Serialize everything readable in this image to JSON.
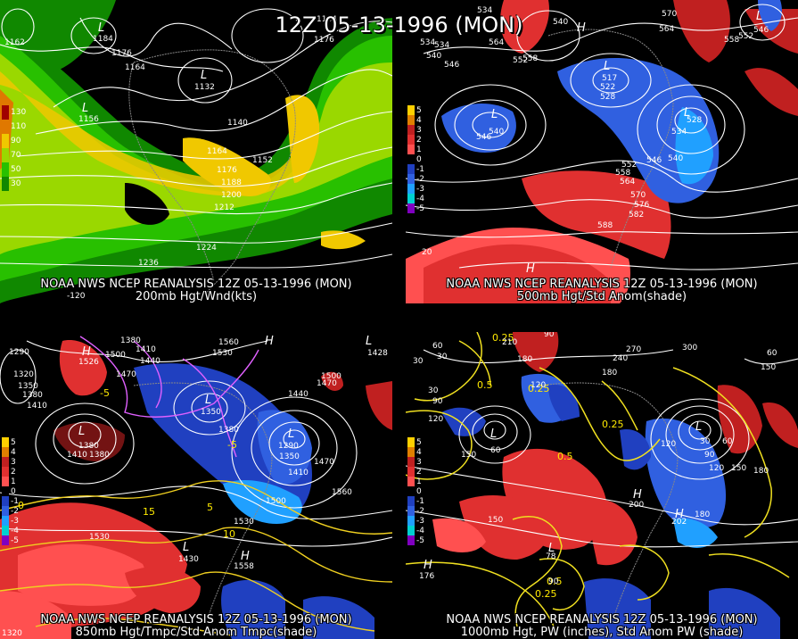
{
  "title": "12Z 05-13-1996 (MON)",
  "panels": [
    {
      "id": "p1",
      "source": "NOAA NWS NCEP REANALYSIS 12Z 05-13-1996 (MON)",
      "field": "200mb Hgt/Wnd(kts)",
      "legend": [
        "130",
        "110",
        "90",
        "70",
        "50",
        "30"
      ],
      "legend_colors": [
        "#a00000",
        "#e07800",
        "#f0c800",
        "#9ad800",
        "#28c000",
        "#108800"
      ],
      "contour_labels": [
        "1164",
        "1176",
        "1164",
        "1184",
        "1132",
        "1156",
        "1140",
        "1152",
        "1164",
        "1176",
        "1188",
        "1200",
        "1212",
        "1224",
        "1236",
        "1176",
        "1162"
      ],
      "lows": [
        "L",
        "L",
        "L"
      ],
      "extra_labels": [
        "-120"
      ]
    },
    {
      "id": "p2",
      "source": "NOAA NWS NCEP REANALYSIS 12Z 05-13-1996 (MON)",
      "field": "500mb Hgt/Std Anom(shade)",
      "legend": [
        "5",
        "4",
        "3",
        "2",
        "1",
        "0",
        "-1",
        "-2",
        "-3",
        "-4",
        "-5"
      ],
      "legend_colors": [
        "#ffd000",
        "#e08000",
        "#c02020",
        "#e03030",
        "#ff5050",
        "#000000",
        "#2040c0",
        "#3060e0",
        "#20a0ff",
        "#00d0d0",
        "#8000c0"
      ],
      "contour_labels": [
        "534",
        "540",
        "546",
        "564",
        "558",
        "570",
        "564",
        "558",
        "552",
        "546",
        "540",
        "546",
        "517",
        "522",
        "528",
        "534",
        "528",
        "540",
        "546",
        "552",
        "558",
        "564",
        "570",
        "576",
        "582",
        "588",
        "20"
      ],
      "highs": [
        "H",
        "H"
      ],
      "lows": [
        "L",
        "L",
        "L"
      ]
    },
    {
      "id": "p3",
      "source": "NOAA NWS NCEP REANALYSIS 12Z 05-13-1996 (MON)",
      "field": "850mb Hgt/Tmpc/Std Anom Tmpc(shade)",
      "legend": [
        "5",
        "4",
        "3",
        "2",
        "1",
        "0",
        "-1",
        "-2",
        "-3",
        "-4",
        "-5"
      ],
      "legend_colors": [
        "#ffd000",
        "#e08000",
        "#c02020",
        "#e03030",
        "#ff5050",
        "#000000",
        "#2040c0",
        "#3060e0",
        "#20a0ff",
        "#00d0d0",
        "#8000c0"
      ],
      "contour_labels": [
        "1380",
        "1410",
        "1440",
        "1470",
        "1500",
        "1530",
        "1560",
        "1320",
        "1290",
        "1350",
        "1380",
        "1410",
        "1380",
        "1410",
        "1440",
        "1470",
        "1500",
        "1530",
        "1560",
        "1380",
        "1410",
        "1500",
        "1530",
        "1530",
        "1560",
        "1430",
        "1558",
        "1320"
      ],
      "temp_labels": [
        "-5",
        "-5",
        "5",
        "10",
        "15",
        "0"
      ],
      "highs": [
        "H",
        "H",
        "H"
      ],
      "lows": [
        "L",
        "L",
        "L",
        "L"
      ]
    },
    {
      "id": "p4",
      "source": "NOAA NWS NCEP REANALYSIS 12Z 05-13-1996 (MON)",
      "field": "1000mb Hgt, PW (inches), Std Anom PW (shade)",
      "legend": [
        "5",
        "4",
        "3",
        "2",
        "1",
        "0",
        "-1",
        "-2",
        "-3",
        "-4",
        "-5"
      ],
      "legend_colors": [
        "#ffd000",
        "#e08000",
        "#c02020",
        "#e03030",
        "#ff5050",
        "#000000",
        "#2040c0",
        "#3060e0",
        "#20a0ff",
        "#00d0d0",
        "#8000c0"
      ],
      "contour_labels": [
        "210",
        "180",
        "90",
        "240",
        "270",
        "300",
        "150",
        "60",
        "30",
        "120",
        "150",
        "120",
        "30",
        "90",
        "60",
        "120",
        "150",
        "180",
        "150",
        "120",
        "90",
        "120",
        "150",
        "180",
        "150",
        "180",
        "60",
        "150",
        "60",
        "90",
        "30"
      ],
      "pw_labels": [
        "0.25",
        "0.25",
        "0.5",
        "0.25",
        "0.5",
        "0.25",
        "0.5"
      ],
      "highs": [
        "H",
        "H",
        "H",
        "H"
      ],
      "lows": [
        "L",
        "L",
        "L",
        "L"
      ]
    }
  ]
}
